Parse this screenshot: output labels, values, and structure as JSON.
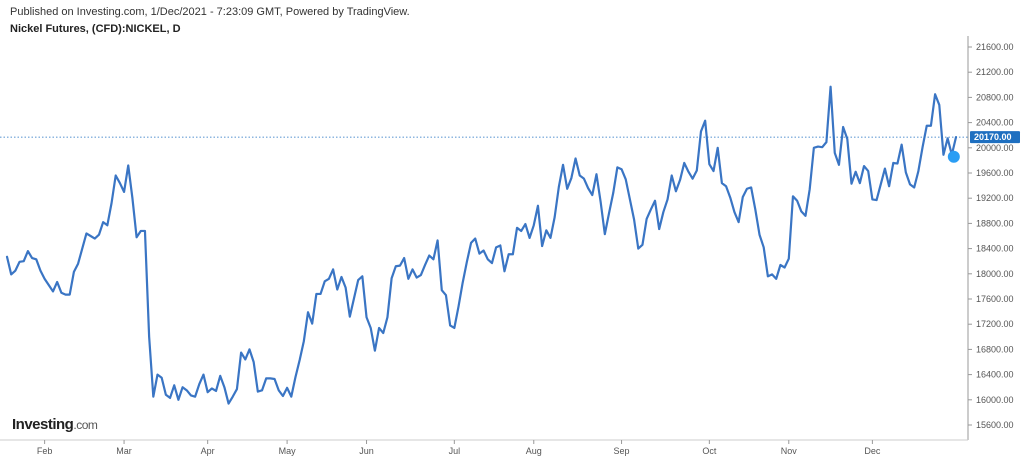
{
  "header": {
    "published": "Published on Investing.com, 1/Dec/2021 - 7:23:09 GMT, Powered by TradingView.",
    "symbol": "Nickel Futures, (CFD):NICKEL, D"
  },
  "logo": {
    "main": "Investing",
    "suffix": ".com"
  },
  "colors": {
    "line": "#3a75c4",
    "price_tag": "#1e6fc0",
    "current_line": "#1e6fc0",
    "grid": "#e6e6e6",
    "axis": "#999999"
  },
  "chart_data": {
    "type": "line",
    "title": "Nickel Futures, (CFD):NICKEL, D",
    "xlabel": "",
    "ylabel": "",
    "ylim": [
      15400,
      21800
    ],
    "y_ticks": [
      "21600.00",
      "21200.00",
      "20800.00",
      "20400.00",
      "20000.00",
      "19600.00",
      "19200.00",
      "18800.00",
      "18400.00",
      "18000.00",
      "17600.00",
      "17200.00",
      "16800.00",
      "16400.00",
      "16000.00",
      "15600.00"
    ],
    "x_ticks": [
      "Feb",
      "Mar",
      "Apr",
      "May",
      "Jun",
      "Jul",
      "Aug",
      "Sep",
      "Oct",
      "Nov",
      "Dec"
    ],
    "x_tick_index": [
      9,
      28,
      48,
      67,
      86,
      107,
      126,
      147,
      168,
      187,
      207
    ],
    "current_value": "20170.00",
    "grid": false,
    "series": [
      {
        "values": [
          18270,
          17990,
          18050,
          18190,
          18200,
          18360,
          18250,
          18230,
          18050,
          17920,
          17820,
          17720,
          17870,
          17700,
          17670,
          17670,
          18030,
          18160,
          18400,
          18640,
          18600,
          18560,
          18620,
          18820,
          18770,
          19120,
          19560,
          19440,
          19300,
          19720,
          19200,
          18580,
          18680,
          18680,
          17000,
          16050,
          16400,
          16350,
          16080,
          16030,
          16230,
          16000,
          16200,
          16150,
          16070,
          16050,
          16250,
          16400,
          16120,
          16180,
          16140,
          16380,
          16200,
          15940,
          16050,
          16170,
          16750,
          16640,
          16800,
          16600,
          16130,
          16150,
          16340,
          16340,
          16330,
          16150,
          16060,
          16190,
          16050,
          16360,
          16630,
          16930,
          17390,
          17210,
          17680,
          17680,
          17880,
          17920,
          18070,
          17750,
          17950,
          17780,
          17320,
          17610,
          17900,
          17960,
          17310,
          17140,
          16780,
          17140,
          17060,
          17310,
          17930,
          18120,
          18130,
          18250,
          17920,
          18070,
          17940,
          17980,
          18140,
          18290,
          18230,
          18530,
          17740,
          17660,
          17180,
          17140,
          17480,
          17860,
          18190,
          18490,
          18560,
          18320,
          18370,
          18230,
          18170,
          18420,
          18450,
          18040,
          18310,
          18310,
          18730,
          18680,
          18790,
          18570,
          18770,
          19080,
          18440,
          18690,
          18570,
          18900,
          19380,
          19730,
          19350,
          19520,
          19830,
          19560,
          19510,
          19360,
          19250,
          19580,
          19140,
          18630,
          18960,
          19280,
          19690,
          19660,
          19500,
          19180,
          18860,
          18400,
          18460,
          18870,
          19020,
          19160,
          18710,
          18980,
          19180,
          19560,
          19310,
          19490,
          19760,
          19620,
          19510,
          19640,
          20260,
          20430,
          19740,
          19630,
          20000,
          19440,
          19390,
          19210,
          18980,
          18820,
          19220,
          19350,
          19370,
          19020,
          18620,
          18420,
          17960,
          17990,
          17920,
          18140,
          18100,
          18240,
          19230,
          19160,
          18990,
          18920,
          19340,
          20000,
          20020,
          20010,
          20090,
          20970,
          19920,
          19730,
          20330,
          20140,
          19430,
          19620,
          19440,
          19710,
          19630,
          19180,
          19170,
          19420,
          19670,
          19390,
          19760,
          19750,
          20050,
          19610,
          19420,
          19370,
          19630,
          20010,
          20350,
          20350,
          20850,
          20680,
          19890,
          20150,
          19890,
          20170
        ]
      }
    ]
  }
}
